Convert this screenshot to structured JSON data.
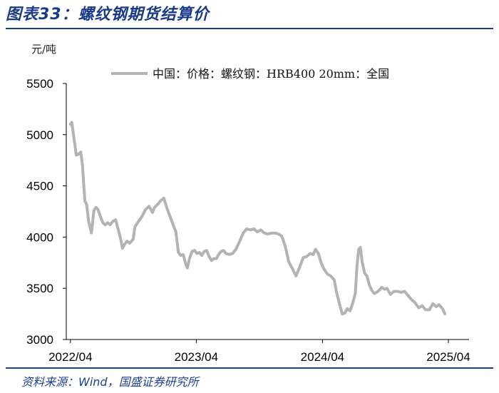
{
  "header": {
    "title": "图表33：螺纹钢期货结算价"
  },
  "footer": {
    "source": "资料来源：Wind，国盛证券研究所"
  },
  "chart_data": {
    "type": "line",
    "unit_label": "元/吨",
    "title": "",
    "xlabel": "",
    "ylabel": "元/吨",
    "ylim": [
      3000,
      5500
    ],
    "yticks": [
      3000,
      3500,
      4000,
      4500,
      5000,
      5500
    ],
    "xlim": [
      "2022-03-20",
      "2025-05-31"
    ],
    "xticks": [
      {
        "value": "2022-04-01",
        "label": "2022/04"
      },
      {
        "value": "2023-04-01",
        "label": "2023/04"
      },
      {
        "value": "2024-04-01",
        "label": "2024/04"
      },
      {
        "value": "2025-04-01",
        "label": "2025/04"
      }
    ],
    "legend_position": "top-center",
    "grid": false,
    "series": [
      {
        "name": "中国：价格：螺纹钢：HRB400 20mm：全国",
        "color": "#b3b3b3",
        "points": [
          [
            "2022-04-01",
            5100
          ],
          [
            "2022-04-05",
            5120
          ],
          [
            "2022-04-12",
            4950
          ],
          [
            "2022-04-18",
            4800
          ],
          [
            "2022-04-25",
            4810
          ],
          [
            "2022-05-01",
            4830
          ],
          [
            "2022-05-06",
            4700
          ],
          [
            "2022-05-09",
            4540
          ],
          [
            "2022-05-13",
            4350
          ],
          [
            "2022-05-18",
            4320
          ],
          [
            "2022-05-24",
            4150
          ],
          [
            "2022-06-01",
            4040
          ],
          [
            "2022-06-08",
            4260
          ],
          [
            "2022-06-14",
            4290
          ],
          [
            "2022-06-20",
            4270
          ],
          [
            "2022-06-27",
            4200
          ],
          [
            "2022-07-04",
            4140
          ],
          [
            "2022-07-11",
            4120
          ],
          [
            "2022-07-18",
            4140
          ],
          [
            "2022-07-25",
            4120
          ],
          [
            "2022-08-01",
            4150
          ],
          [
            "2022-08-10",
            4170
          ],
          [
            "2022-08-18",
            4070
          ],
          [
            "2022-08-25",
            3980
          ],
          [
            "2022-08-30",
            3890
          ],
          [
            "2022-09-05",
            3930
          ],
          [
            "2022-09-12",
            3960
          ],
          [
            "2022-09-20",
            3940
          ],
          [
            "2022-09-30",
            3980
          ],
          [
            "2022-10-05",
            4100
          ],
          [
            "2022-10-15",
            4150
          ],
          [
            "2022-10-25",
            4200
          ],
          [
            "2022-11-05",
            4270
          ],
          [
            "2022-11-15",
            4300
          ],
          [
            "2022-11-25",
            4240
          ],
          [
            "2022-12-01",
            4290
          ],
          [
            "2022-12-10",
            4320
          ],
          [
            "2022-12-20",
            4360
          ],
          [
            "2022-12-28",
            4380
          ],
          [
            "2023-01-05",
            4290
          ],
          [
            "2023-01-15",
            4200
          ],
          [
            "2023-01-25",
            4110
          ],
          [
            "2023-02-01",
            4050
          ],
          [
            "2023-02-08",
            3850
          ],
          [
            "2023-02-15",
            3820
          ],
          [
            "2023-02-22",
            3830
          ],
          [
            "2023-03-01",
            3740
          ],
          [
            "2023-03-06",
            3700
          ],
          [
            "2023-03-13",
            3800
          ],
          [
            "2023-03-20",
            3860
          ],
          [
            "2023-03-27",
            3870
          ],
          [
            "2023-04-03",
            3840
          ],
          [
            "2023-04-10",
            3850
          ],
          [
            "2023-04-17",
            3820
          ],
          [
            "2023-04-24",
            3860
          ],
          [
            "2023-05-01",
            3870
          ],
          [
            "2023-05-08",
            3810
          ],
          [
            "2023-05-15",
            3770
          ],
          [
            "2023-05-22",
            3790
          ],
          [
            "2023-05-29",
            3790
          ],
          [
            "2023-06-05",
            3830
          ],
          [
            "2023-06-12",
            3860
          ],
          [
            "2023-06-19",
            3870
          ],
          [
            "2023-06-26",
            3840
          ],
          [
            "2023-07-05",
            3830
          ],
          [
            "2023-07-15",
            3840
          ],
          [
            "2023-07-25",
            3880
          ],
          [
            "2023-08-05",
            3960
          ],
          [
            "2023-08-15",
            4040
          ],
          [
            "2023-08-25",
            4080
          ],
          [
            "2023-09-05",
            4070
          ],
          [
            "2023-09-15",
            4080
          ],
          [
            "2023-09-25",
            4050
          ],
          [
            "2023-10-05",
            4070
          ],
          [
            "2023-10-15",
            4040
          ],
          [
            "2023-10-25",
            4030
          ],
          [
            "2023-11-05",
            4040
          ],
          [
            "2023-11-15",
            4040
          ],
          [
            "2023-11-25",
            4030
          ],
          [
            "2023-12-05",
            4010
          ],
          [
            "2023-12-15",
            3910
          ],
          [
            "2023-12-25",
            3760
          ],
          [
            "2024-01-05",
            3690
          ],
          [
            "2024-01-15",
            3620
          ],
          [
            "2024-01-25",
            3700
          ],
          [
            "2024-02-05",
            3800
          ],
          [
            "2024-02-15",
            3810
          ],
          [
            "2024-02-25",
            3840
          ],
          [
            "2024-03-05",
            3830
          ],
          [
            "2024-03-12",
            3880
          ],
          [
            "2024-03-20",
            3840
          ],
          [
            "2024-03-28",
            3750
          ],
          [
            "2024-04-05",
            3690
          ],
          [
            "2024-04-15",
            3640
          ],
          [
            "2024-04-25",
            3620
          ],
          [
            "2024-05-05",
            3580
          ],
          [
            "2024-05-12",
            3460
          ],
          [
            "2024-05-20",
            3350
          ],
          [
            "2024-05-28",
            3250
          ],
          [
            "2024-06-05",
            3260
          ],
          [
            "2024-06-12",
            3300
          ],
          [
            "2024-06-20",
            3280
          ],
          [
            "2024-06-28",
            3360
          ],
          [
            "2024-07-05",
            3450
          ],
          [
            "2024-07-10",
            3720
          ],
          [
            "2024-07-15",
            3880
          ],
          [
            "2024-07-20",
            3900
          ],
          [
            "2024-07-25",
            3760
          ],
          [
            "2024-08-01",
            3650
          ],
          [
            "2024-08-08",
            3620
          ],
          [
            "2024-08-15",
            3530
          ],
          [
            "2024-08-22",
            3480
          ],
          [
            "2024-08-29",
            3450
          ],
          [
            "2024-09-05",
            3460
          ],
          [
            "2024-09-12",
            3480
          ],
          [
            "2024-09-20",
            3510
          ],
          [
            "2024-09-28",
            3490
          ],
          [
            "2024-10-05",
            3500
          ],
          [
            "2024-10-15",
            3440
          ],
          [
            "2024-10-25",
            3470
          ],
          [
            "2024-11-05",
            3470
          ],
          [
            "2024-11-15",
            3460
          ],
          [
            "2024-11-25",
            3470
          ],
          [
            "2024-12-05",
            3430
          ],
          [
            "2024-12-15",
            3390
          ],
          [
            "2024-12-25",
            3360
          ],
          [
            "2025-01-05",
            3310
          ],
          [
            "2025-01-15",
            3330
          ],
          [
            "2025-01-25",
            3290
          ],
          [
            "2025-02-05",
            3290
          ],
          [
            "2025-02-15",
            3350
          ],
          [
            "2025-02-25",
            3320
          ],
          [
            "2025-03-05",
            3340
          ],
          [
            "2025-03-15",
            3300
          ],
          [
            "2025-03-22",
            3250
          ]
        ]
      }
    ]
  }
}
